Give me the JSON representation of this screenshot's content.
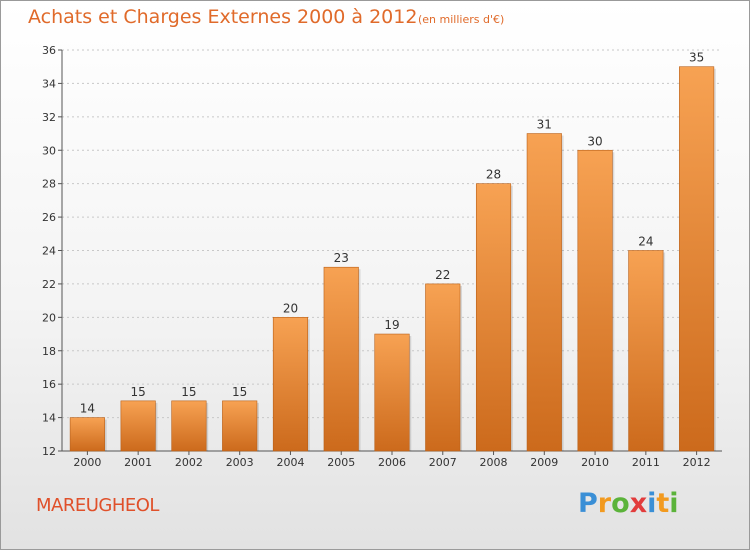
{
  "header": {
    "title": "Achats et Charges Externes 2000 à 2012",
    "unit": "(en milliers d'€)"
  },
  "footer": {
    "town": "MAREUGHEOL",
    "brand_letters": [
      "P",
      "r",
      "o",
      "x",
      "i",
      "t",
      "i"
    ],
    "brand_colors": [
      "#3a8fd6",
      "#f29a1f",
      "#5bb33a",
      "#e23c3c",
      "#3a8fd6",
      "#f29a1f",
      "#5bb33a"
    ]
  },
  "chart_data": {
    "type": "bar",
    "categories": [
      "2000",
      "2001",
      "2002",
      "2003",
      "2004",
      "2005",
      "2006",
      "2007",
      "2008",
      "2009",
      "2010",
      "2011",
      "2012"
    ],
    "values": [
      14,
      15,
      15,
      15,
      20,
      23,
      19,
      22,
      28,
      31,
      30,
      24,
      35
    ],
    "title": "Achats et Charges Externes 2000 à 2012",
    "ylim": [
      12,
      36
    ],
    "yticks": [
      12,
      14,
      16,
      18,
      20,
      22,
      24,
      26,
      28,
      30,
      32,
      34,
      36
    ],
    "grid": true,
    "bar_color_top": "#f7a253",
    "bar_color_bottom": "#cc6a1c"
  }
}
